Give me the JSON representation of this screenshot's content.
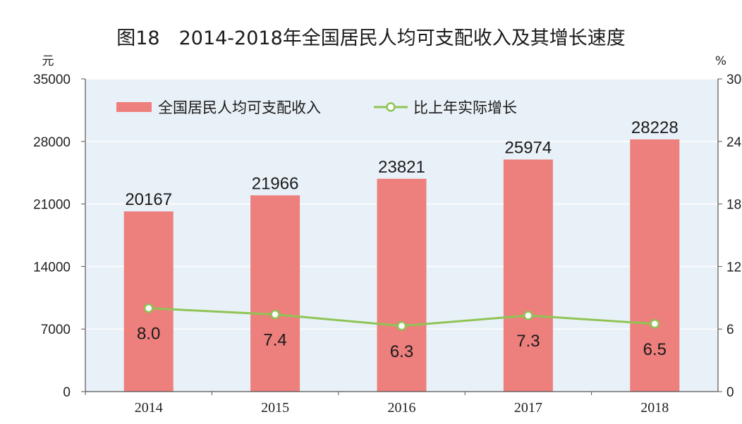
{
  "chart_data": {
    "type": "bar",
    "title": "图18　2014-2018年全国居民人均可支配收入及其增长速度",
    "categories": [
      "2014",
      "2015",
      "2016",
      "2017",
      "2018"
    ],
    "series": [
      {
        "name": "全国居民人均可支配收入",
        "type": "bar",
        "axis": "left",
        "values": [
          20167,
          21966,
          23821,
          25974,
          28228
        ],
        "color": "#ed7f7d"
      },
      {
        "name": "比上年实际增长",
        "type": "line",
        "axis": "right",
        "values": [
          8.0,
          7.4,
          6.3,
          7.3,
          6.5
        ],
        "labels": [
          "8.0",
          "7.4",
          "6.3",
          "7.3",
          "6.5"
        ],
        "color": "#8fc455"
      }
    ],
    "y_left": {
      "unit": "元",
      "ylim": [
        0,
        35000
      ],
      "ticks": [
        0,
        7000,
        14000,
        21000,
        28000,
        35000
      ]
    },
    "y_right": {
      "unit": "%",
      "ylim": [
        0,
        30
      ],
      "ticks": [
        0,
        6,
        12,
        18,
        24,
        30
      ]
    },
    "grid": true,
    "legend_position": "top-left",
    "plot_background": "#e9f1f8"
  }
}
